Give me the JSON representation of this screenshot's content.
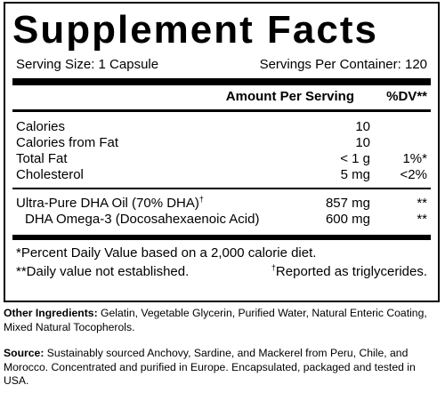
{
  "title": "Supplement Facts",
  "serving_size": "Serving Size: 1 Capsule",
  "servings_per_container": "Servings Per Container: 120",
  "header": {
    "amount": "Amount Per Serving",
    "dv": "%DV**"
  },
  "nutrients": [
    {
      "name": "Calories",
      "amount": "10",
      "dv": ""
    },
    {
      "name": "Calories from Fat",
      "amount": "10",
      "dv": ""
    },
    {
      "name": "Total Fat",
      "amount": "< 1 g",
      "dv": "1%*"
    },
    {
      "name": "Cholesterol",
      "amount": "5 mg",
      "dv": "<2%"
    }
  ],
  "actives": [
    {
      "name": "Ultra-Pure DHA Oil (70% DHA)",
      "mark": "†",
      "amount": "857 mg",
      "dv": "**"
    },
    {
      "name": "DHA Omega-3 (Docosahexaenoic Acid)",
      "mark": "",
      "amount": "600 mg",
      "dv": "**"
    }
  ],
  "footnotes": {
    "dv_basis": "*Percent Daily Value based on a 2,000 calorie diet.",
    "not_established": "**Daily value not established.",
    "mark": "†",
    "triglycerides": "Reported as triglycerides."
  },
  "other_ingredients": {
    "label": "Other Ingredients:",
    "text": "Gelatin, Vegetable Glycerin, Purified Water, Natural Enteric Coating, Mixed Natural Tocopherols."
  },
  "source": {
    "label": "Source:",
    "text": "Sustainably sourced Anchovy, Sardine, and Mackerel from Peru, Chile, and Morocco. Concentrated and purified in Europe. Encapsulated, packaged and tested in USA."
  }
}
